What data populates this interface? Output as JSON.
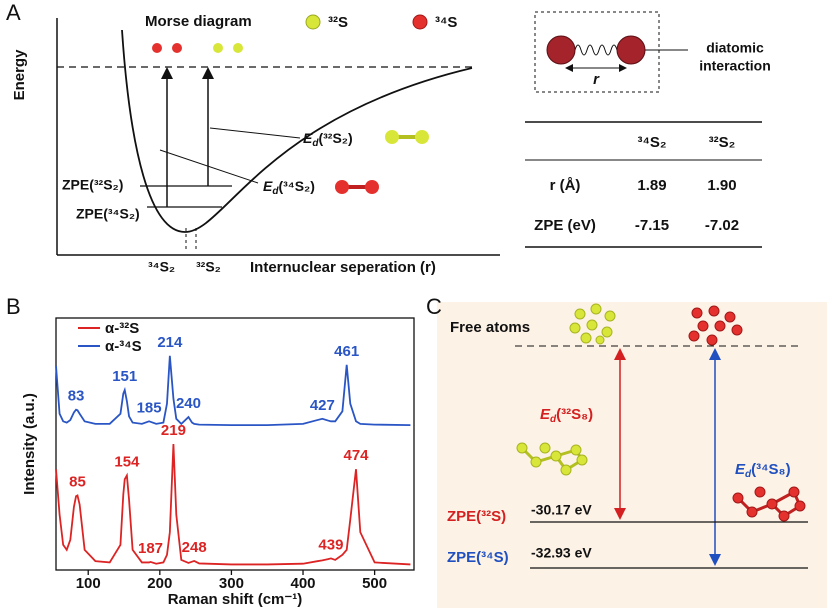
{
  "panel_a": {
    "label": "A",
    "y_axis": "Energy",
    "x_axis": "Internuclear seperation (r)",
    "title": "Morse diagram",
    "legend": [
      "³²S",
      "³⁴S"
    ],
    "zpe_labels": [
      "ZPE(³²S₂)",
      "ZPE(³⁴S₂)"
    ],
    "min_labels": [
      "³⁴S₂",
      "³²S₂"
    ],
    "ed_32": {
      "symbol": "E",
      "subscript": "d",
      "species": "(³²S₂)"
    },
    "ed_34": {
      "symbol": "E",
      "subscript": "d",
      "species": "(³⁴S₂)"
    },
    "inset": {
      "distance": "r",
      "caption": [
        "diatomic",
        "interaction"
      ]
    },
    "table": {
      "header": [
        "³⁴S₂",
        "³²S₂"
      ],
      "rows": [
        [
          "r (Å)",
          "1.89",
          "1.90"
        ],
        [
          "ZPE (eV)",
          "-7.15",
          "-7.02"
        ]
      ]
    }
  },
  "chart_data": {
    "type": "line",
    "label": "B",
    "x_label": "Raman shift (cm⁻¹)",
    "y_label": "Intensity (a.u.)",
    "xlim": [
      55,
      555
    ],
    "xticks": [
      100,
      200,
      300,
      400,
      500
    ],
    "ylim": [
      0,
      100
    ],
    "x": [
      55,
      60,
      65,
      70,
      75,
      80,
      83,
      85,
      88,
      95,
      110,
      130,
      145,
      149,
      151,
      154,
      157,
      162,
      175,
      185,
      187,
      195,
      205,
      210,
      214,
      219,
      223,
      230,
      240,
      245,
      248,
      255,
      300,
      350,
      400,
      420,
      427,
      435,
      439,
      445,
      455,
      461,
      466,
      474,
      480,
      500,
      550
    ],
    "series": [
      {
        "name": "α-³²S",
        "color": "#dc2424",
        "values": [
          40,
          22,
          10,
          8,
          12,
          25,
          29.3,
          29.6,
          26,
          8,
          3.5,
          3,
          10,
          30,
          36,
          37.5,
          28,
          8,
          3,
          3,
          3.2,
          2.5,
          3,
          6,
          15,
          50,
          22,
          4,
          2.8,
          3.3,
          3.6,
          2.6,
          2.2,
          2.2,
          2.5,
          3.5,
          3.8,
          4.3,
          4.6,
          4,
          6,
          8,
          20,
          40,
          15,
          3,
          2.2
        ],
        "peak_labels": [
          85,
          154,
          187,
          219,
          248,
          439,
          474
        ]
      },
      {
        "name": "α-³⁴S",
        "color": "#2a55c4",
        "values": [
          81,
          62,
          59,
          58.5,
          59.5,
          62.5,
          63.6,
          63.4,
          62,
          59,
          58,
          58,
          62,
          70,
          71.4,
          67,
          61,
          58.5,
          58,
          59,
          58.8,
          58,
          58.5,
          66,
          85,
          68,
          60,
          58,
          60.7,
          58.5,
          58,
          57.7,
          57.5,
          57.5,
          58,
          59.5,
          60,
          59.3,
          59,
          59,
          63,
          81.4,
          66,
          59,
          58,
          57.7,
          57.5
        ],
        "peak_labels": [
          83,
          151,
          185,
          214,
          240,
          427,
          461
        ]
      }
    ]
  },
  "panel_c": {
    "label": "C",
    "free_atoms": "Free atoms",
    "ed_32": {
      "symbol": "E",
      "subscript": "d",
      "species": "(³²S₈)"
    },
    "ed_34": {
      "symbol": "E",
      "subscript": "d",
      "species": "(³⁴S₈)"
    },
    "levels": [
      {
        "name": "ZPE(³²S)",
        "energy": "-30.17 eV"
      },
      {
        "name": "ZPE(³⁴S)",
        "energy": "-32.93 eV"
      }
    ]
  }
}
